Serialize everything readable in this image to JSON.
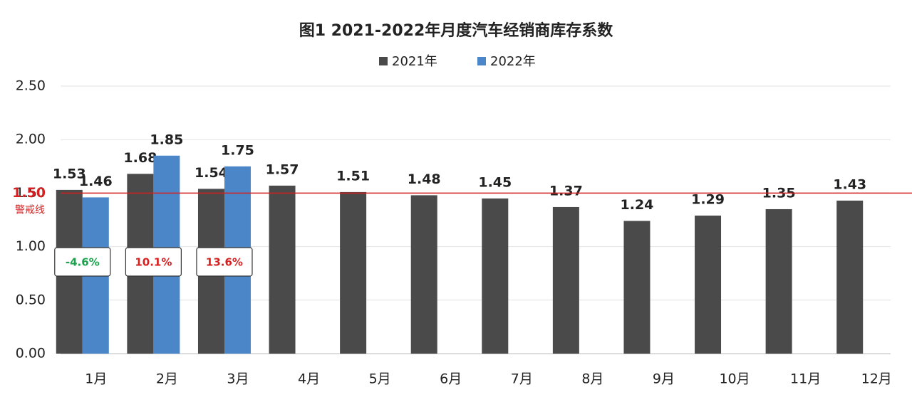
{
  "chart_data": {
    "type": "bar",
    "title": "图1  2021-2022年月度汽车经销商库存系数",
    "categories": [
      "1月",
      "2月",
      "3月",
      "4月",
      "5月",
      "6月",
      "7月",
      "8月",
      "9月",
      "10月",
      "11月",
      "12月"
    ],
    "series": [
      {
        "name": "2021年",
        "color": "#4a4a4a",
        "values": [
          1.53,
          1.68,
          1.54,
          1.57,
          1.51,
          1.48,
          1.45,
          1.37,
          1.24,
          1.29,
          1.35,
          1.43
        ]
      },
      {
        "name": "2022年",
        "color": "#4a86c8",
        "values": [
          1.46,
          1.85,
          1.75,
          null,
          null,
          null,
          null,
          null,
          null,
          null,
          null,
          null
        ]
      }
    ],
    "ylim": [
      0,
      2.5
    ],
    "yticks": [
      {
        "value": 0,
        "label": "0.00"
      },
      {
        "value": 0.5,
        "label": "0.50"
      },
      {
        "value": 1,
        "label": "1.00"
      },
      {
        "value": 1.5,
        "label": "1.50"
      },
      {
        "value": 2,
        "label": "2.00"
      },
      {
        "value": 2.5,
        "label": "2.50"
      }
    ],
    "grid": true,
    "legend": "top",
    "reference_line": {
      "value": 1.5,
      "label": "1.50",
      "note": "警戒线",
      "color": "#d62020"
    },
    "annotations": [
      {
        "text": "-4.6%",
        "color": "#1aa34a"
      },
      {
        "text": "10.1%",
        "color": "#d62020"
      },
      {
        "text": "13.6%",
        "color": "#d62020"
      }
    ]
  }
}
